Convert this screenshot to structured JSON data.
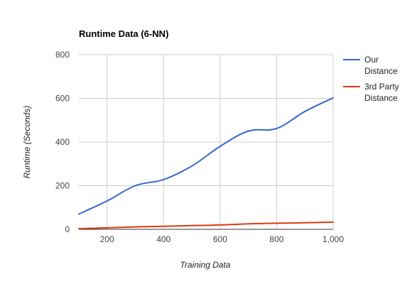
{
  "chart_data": {
    "type": "line",
    "title": "Runtime Data (6-NN)",
    "xlabel": "Training Data",
    "ylabel": "Runtime (Seconds)",
    "xlim": [
      100,
      1000
    ],
    "ylim": [
      0,
      800
    ],
    "x_ticks": [
      200,
      400,
      600,
      800,
      1000
    ],
    "x_tick_labels": [
      "200",
      "400",
      "600",
      "800",
      "1,000"
    ],
    "y_ticks": [
      0,
      200,
      400,
      600,
      800
    ],
    "y_tick_labels": [
      "0",
      "200",
      "400",
      "600",
      "800"
    ],
    "grid": true,
    "legend_position": "right",
    "x": [
      100,
      200,
      300,
      400,
      500,
      600,
      700,
      800,
      900,
      1000
    ],
    "series": [
      {
        "name": "Our Distance",
        "legend_lines": [
          "Our",
          "Distance"
        ],
        "color": "#3366cc",
        "values": [
          70,
          130,
          200,
          228,
          290,
          380,
          450,
          462,
          540,
          602
        ]
      },
      {
        "name": "3rd Party Distance",
        "legend_lines": [
          "3rd Party",
          "Distance"
        ],
        "color": "#dc3912",
        "values": [
          3,
          7,
          11,
          14,
          17,
          20,
          25,
          28,
          30,
          33
        ]
      }
    ]
  }
}
